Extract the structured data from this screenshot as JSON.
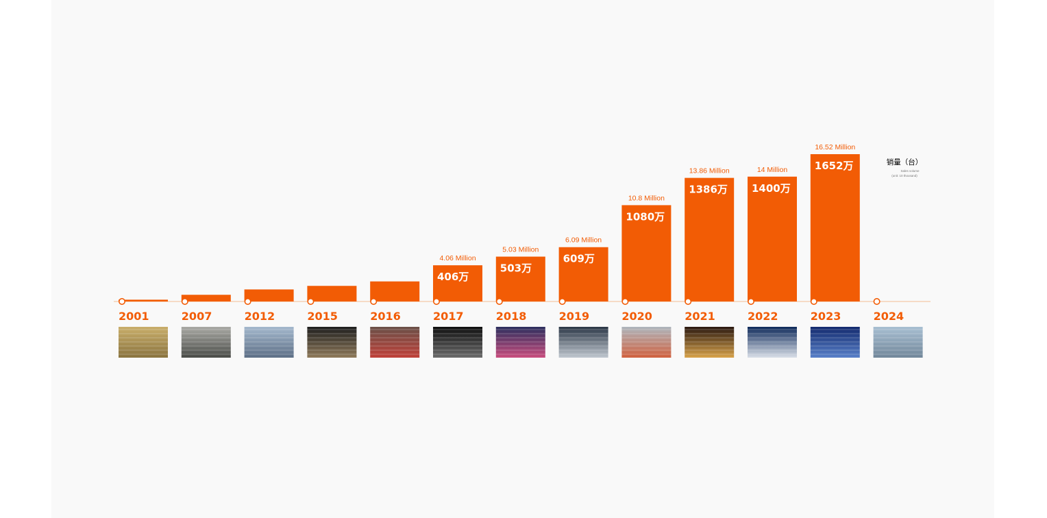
{
  "colors": {
    "accent": "#f25c05",
    "baseline": "#f5c9a8",
    "page_bg": "#f9f9f9"
  },
  "legend": {
    "title": "销量（台）",
    "subtitle_lines": [
      "Sales volume",
      "(unit: 10 thousand)"
    ]
  },
  "chart_data": {
    "type": "bar",
    "categories": [
      "2001",
      "2007",
      "2012",
      "2015",
      "2016",
      "2017",
      "2018",
      "2019",
      "2020",
      "2021",
      "2022",
      "2023",
      "2024"
    ],
    "series": [
      {
        "values": [
          20,
          75,
          135,
          175,
          225,
          406,
          503,
          609,
          1080,
          1386,
          1400,
          1652,
          0
        ],
        "value_labels": [
          "",
          "",
          "",
          "",
          "",
          "406万",
          "503万",
          "609万",
          "1080万",
          "1386万",
          "1400万",
          "1652万",
          ""
        ],
        "annotations": [
          "",
          "",
          "",
          "",
          "",
          "4.06 Million",
          "5.03 Million",
          "6.09 Million",
          "10.8 Million",
          "13.86 Million",
          "14 Million",
          "16.52 Million",
          ""
        ]
      }
    ],
    "ylim": [
      0,
      1652
    ],
    "grid": false,
    "legend_position": "top-right"
  },
  "photos": [
    {
      "year": "2001",
      "icon": "factory-building-photo",
      "colors": [
        "#c9ae6a",
        "#8a7440"
      ]
    },
    {
      "year": "2007",
      "icon": "scooter-riders-photo",
      "colors": [
        "#a9a9a4",
        "#4a4c48"
      ]
    },
    {
      "year": "2012",
      "icon": "factory-building-photo",
      "colors": [
        "#a4b8cd",
        "#5d6f86"
      ]
    },
    {
      "year": "2015",
      "icon": "world-map-photo",
      "colors": [
        "#1e1e1e",
        "#8f7a5a"
      ]
    },
    {
      "year": "2016",
      "icon": "exhibition-booth-photo",
      "colors": [
        "#6a5048",
        "#c0413a"
      ]
    },
    {
      "year": "2017",
      "icon": "scooter-product-photo",
      "colors": [
        "#101010",
        "#6b6b6b"
      ]
    },
    {
      "year": "2018",
      "icon": "stage-event-photo",
      "colors": [
        "#2d2f5e",
        "#c94d7e"
      ]
    },
    {
      "year": "2019",
      "icon": "yadea-building-photo",
      "colors": [
        "#2b3746",
        "#c0c7cf"
      ]
    },
    {
      "year": "2020",
      "icon": "warehouse-trucks-photo",
      "colors": [
        "#aeb6bd",
        "#d0613f"
      ]
    },
    {
      "year": "2021",
      "icon": "cctv-award-photo",
      "colors": [
        "#2a1810",
        "#d8a34a"
      ]
    },
    {
      "year": "2022",
      "icon": "yadea-press-photo",
      "colors": [
        "#0e2a5a",
        "#d9dfe8"
      ]
    },
    {
      "year": "2023",
      "icon": "stage-presentation-photo",
      "colors": [
        "#132a6e",
        "#5880c8"
      ]
    },
    {
      "year": "2024",
      "icon": "factory-building-photo",
      "colors": [
        "#a8bfd2",
        "#72879a"
      ]
    }
  ]
}
